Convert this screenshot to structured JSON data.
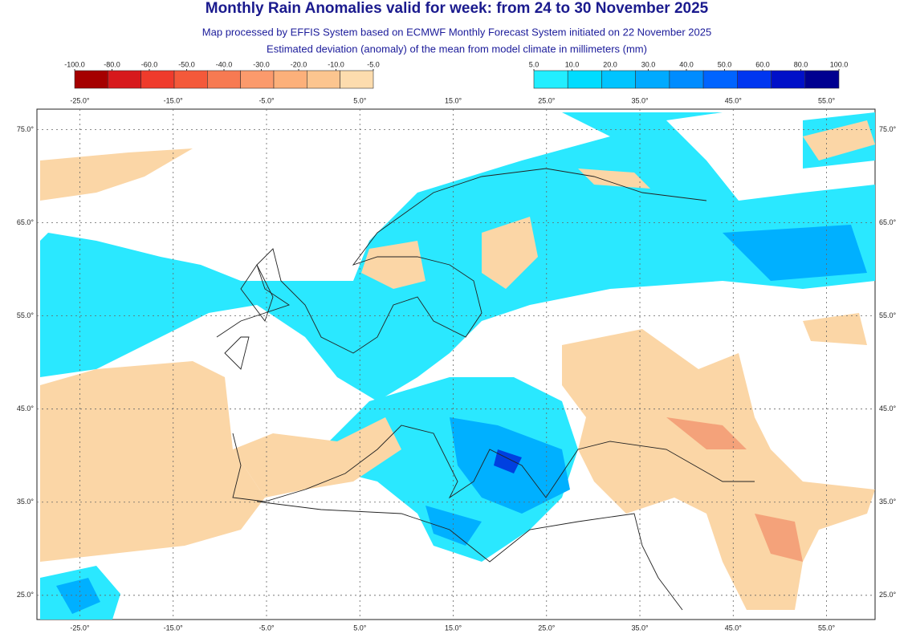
{
  "header": {
    "title": "Monthly Rain Anomalies valid for week: from 24 to 30 November 2025",
    "subtitle_1": "Map processed by EFFIS System based on ECMWF Monthly Forecast System initiated on 22 November 2025",
    "subtitle_2": "Estimated deviation (anomaly) of the mean from model climate in millimeters (mm)"
  },
  "legend": {
    "dry": {
      "colors": [
        "#a50000",
        "#d7191c",
        "#ef3b2c",
        "#f4593a",
        "#f77a52",
        "#fb9a6c",
        "#fcb07a",
        "#fcc58f",
        "#fddcae"
      ],
      "ticks": [
        {
          "value": -100,
          "label": "-100.0"
        },
        {
          "value": -80,
          "label": "-80.0"
        },
        {
          "value": -60,
          "label": "-60.0"
        },
        {
          "value": -50,
          "label": "-50.0"
        },
        {
          "value": -40,
          "label": "-40.0"
        },
        {
          "value": -30,
          "label": "-30.0"
        },
        {
          "value": -20,
          "label": "-20.0"
        },
        {
          "value": -10,
          "label": "-10.0"
        },
        {
          "value": -5,
          "label": "-5.0"
        }
      ]
    },
    "wet": {
      "colors": [
        "#22eeff",
        "#00dcff",
        "#00c4ff",
        "#00aaff",
        "#008cff",
        "#0064ff",
        "#0036f0",
        "#0010c8",
        "#000090"
      ],
      "ticks": [
        {
          "value": 5,
          "label": "5.0"
        },
        {
          "value": 10,
          "label": "10.0"
        },
        {
          "value": 20,
          "label": "20.0"
        },
        {
          "value": 30,
          "label": "30.0"
        },
        {
          "value": 40,
          "label": "40.0"
        },
        {
          "value": 50,
          "label": "50.0"
        },
        {
          "value": 60,
          "label": "60.0"
        },
        {
          "value": 80,
          "label": "80.0"
        },
        {
          "value": 100,
          "label": "100.0"
        }
      ]
    }
  },
  "map": {
    "xlim": [
      -29.6,
      60.2
    ],
    "ylim": [
      22.4,
      77.2
    ],
    "lon_ticks": [
      {
        "value": -25,
        "label": "-25.0°"
      },
      {
        "value": -15,
        "label": "-15.0°"
      },
      {
        "value": -5,
        "label": "-5.0°"
      },
      {
        "value": 5,
        "label": "5.0°"
      },
      {
        "value": 15,
        "label": "15.0°"
      },
      {
        "value": 25,
        "label": "25.0°"
      },
      {
        "value": 35,
        "label": "35.0°"
      },
      {
        "value": 45,
        "label": "45.0°"
      },
      {
        "value": 55,
        "label": "55.0°"
      }
    ],
    "lat_ticks": [
      {
        "value": 75,
        "label": "75.0°"
      },
      {
        "value": 65,
        "label": "65.0°"
      },
      {
        "value": 55,
        "label": "55.0°"
      },
      {
        "value": 45,
        "label": "45.0°"
      },
      {
        "value": 35,
        "label": "35.0°"
      },
      {
        "value": 25,
        "label": "25.0°"
      }
    ]
  }
}
